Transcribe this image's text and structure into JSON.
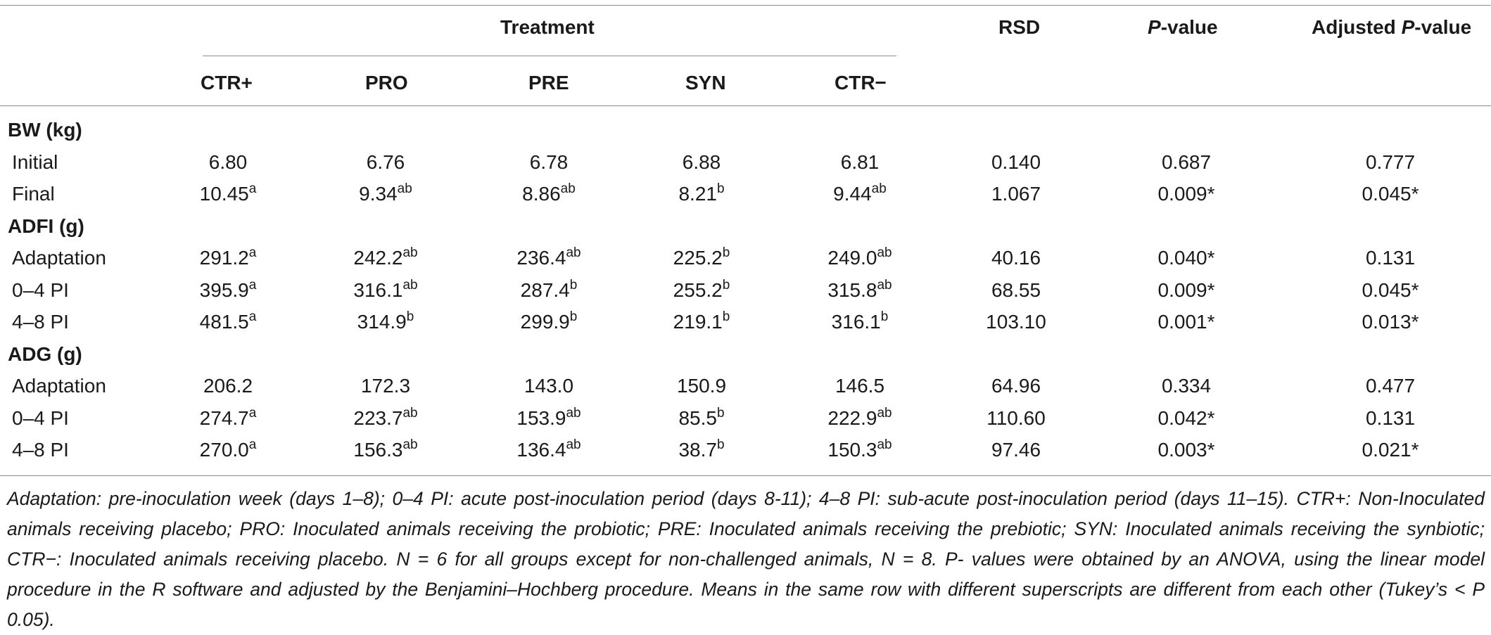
{
  "header": {
    "group_label": "Treatment",
    "columns": [
      "CTR+",
      "PRO",
      "PRE",
      "SYN",
      "CTR−"
    ],
    "rsd": "RSD",
    "pvalue_italic": "P",
    "pvalue_rest": "-value",
    "adj_prefix": "Adjusted ",
    "adj_italic": "P",
    "adj_rest": "-value"
  },
  "sections": [
    {
      "title": "BW (kg)",
      "rows": [
        {
          "label": "Initial",
          "cells": [
            [
              "6.80",
              ""
            ],
            [
              "6.76",
              ""
            ],
            [
              "6.78",
              ""
            ],
            [
              "6.88",
              ""
            ],
            [
              "6.81",
              ""
            ]
          ],
          "rsd": "0.140",
          "p": "0.687",
          "adj": "0.777"
        },
        {
          "label": "Final",
          "cells": [
            [
              "10.45",
              "a"
            ],
            [
              "9.34",
              "ab"
            ],
            [
              "8.86",
              "ab"
            ],
            [
              "8.21",
              "b"
            ],
            [
              "9.44",
              "ab"
            ]
          ],
          "rsd": "1.067",
          "p": "0.009*",
          "adj": "0.045*"
        }
      ]
    },
    {
      "title": "ADFI (g)",
      "rows": [
        {
          "label": "Adaptation",
          "cells": [
            [
              "291.2",
              "a"
            ],
            [
              "242.2",
              "ab"
            ],
            [
              "236.4",
              "ab"
            ],
            [
              "225.2",
              "b"
            ],
            [
              "249.0",
              "ab"
            ]
          ],
          "rsd": "40.16",
          "p": "0.040*",
          "adj": "0.131"
        },
        {
          "label": "0–4 PI",
          "cells": [
            [
              "395.9",
              "a"
            ],
            [
              "316.1",
              "ab"
            ],
            [
              "287.4",
              "b"
            ],
            [
              "255.2",
              "b"
            ],
            [
              "315.8",
              "ab"
            ]
          ],
          "rsd": "68.55",
          "p": "0.009*",
          "adj": "0.045*"
        },
        {
          "label": "4–8 PI",
          "cells": [
            [
              "481.5",
              "a"
            ],
            [
              "314.9",
              "b"
            ],
            [
              "299.9",
              "b"
            ],
            [
              "219.1",
              "b"
            ],
            [
              "316.1",
              "b"
            ]
          ],
          "rsd": "103.10",
          "p": "0.001*",
          "adj": "0.013*"
        }
      ]
    },
    {
      "title": "ADG (g)",
      "rows": [
        {
          "label": "Adaptation",
          "cells": [
            [
              "206.2",
              ""
            ],
            [
              "172.3",
              ""
            ],
            [
              "143.0",
              ""
            ],
            [
              "150.9",
              ""
            ],
            [
              "146.5",
              ""
            ]
          ],
          "rsd": "64.96",
          "p": "0.334",
          "adj": "0.477"
        },
        {
          "label": "0–4 PI",
          "cells": [
            [
              "274.7",
              "a"
            ],
            [
              "223.7",
              "ab"
            ],
            [
              "153.9",
              "ab"
            ],
            [
              "85.5",
              "b"
            ],
            [
              "222.9",
              "ab"
            ]
          ],
          "rsd": "110.60",
          "p": "0.042*",
          "adj": "0.131"
        },
        {
          "label": "4–8 PI",
          "cells": [
            [
              "270.0",
              "a"
            ],
            [
              "156.3",
              "ab"
            ],
            [
              "136.4",
              "ab"
            ],
            [
              "38.7",
              "b"
            ],
            [
              "150.3",
              "ab"
            ]
          ],
          "rsd": "97.46",
          "p": "0.003*",
          "adj": "0.021*"
        }
      ]
    }
  ],
  "footnote": "Adaptation: pre-inoculation week (days 1–8); 0–4 PI: acute post-inoculation period (days 8-11); 4–8 PI: sub-acute post-inoculation period (days 11–15). CTR+: Non-Inoculated animals receiving placebo; PRO: Inoculated animals receiving the probiotic; PRE: Inoculated animals receiving the prebiotic; SYN: Inoculated animals receiving the synbiotic; CTR−: Inoculated animals receiving placebo. N = 6 for all groups except for non-challenged animals, N = 8. P- values were obtained by an ANOVA, using the linear model procedure in the R software and adjusted by the Benjamini–Hochberg procedure. Means in the same row with different superscripts are different from each other (Tukey’s < P 0.05)."
}
